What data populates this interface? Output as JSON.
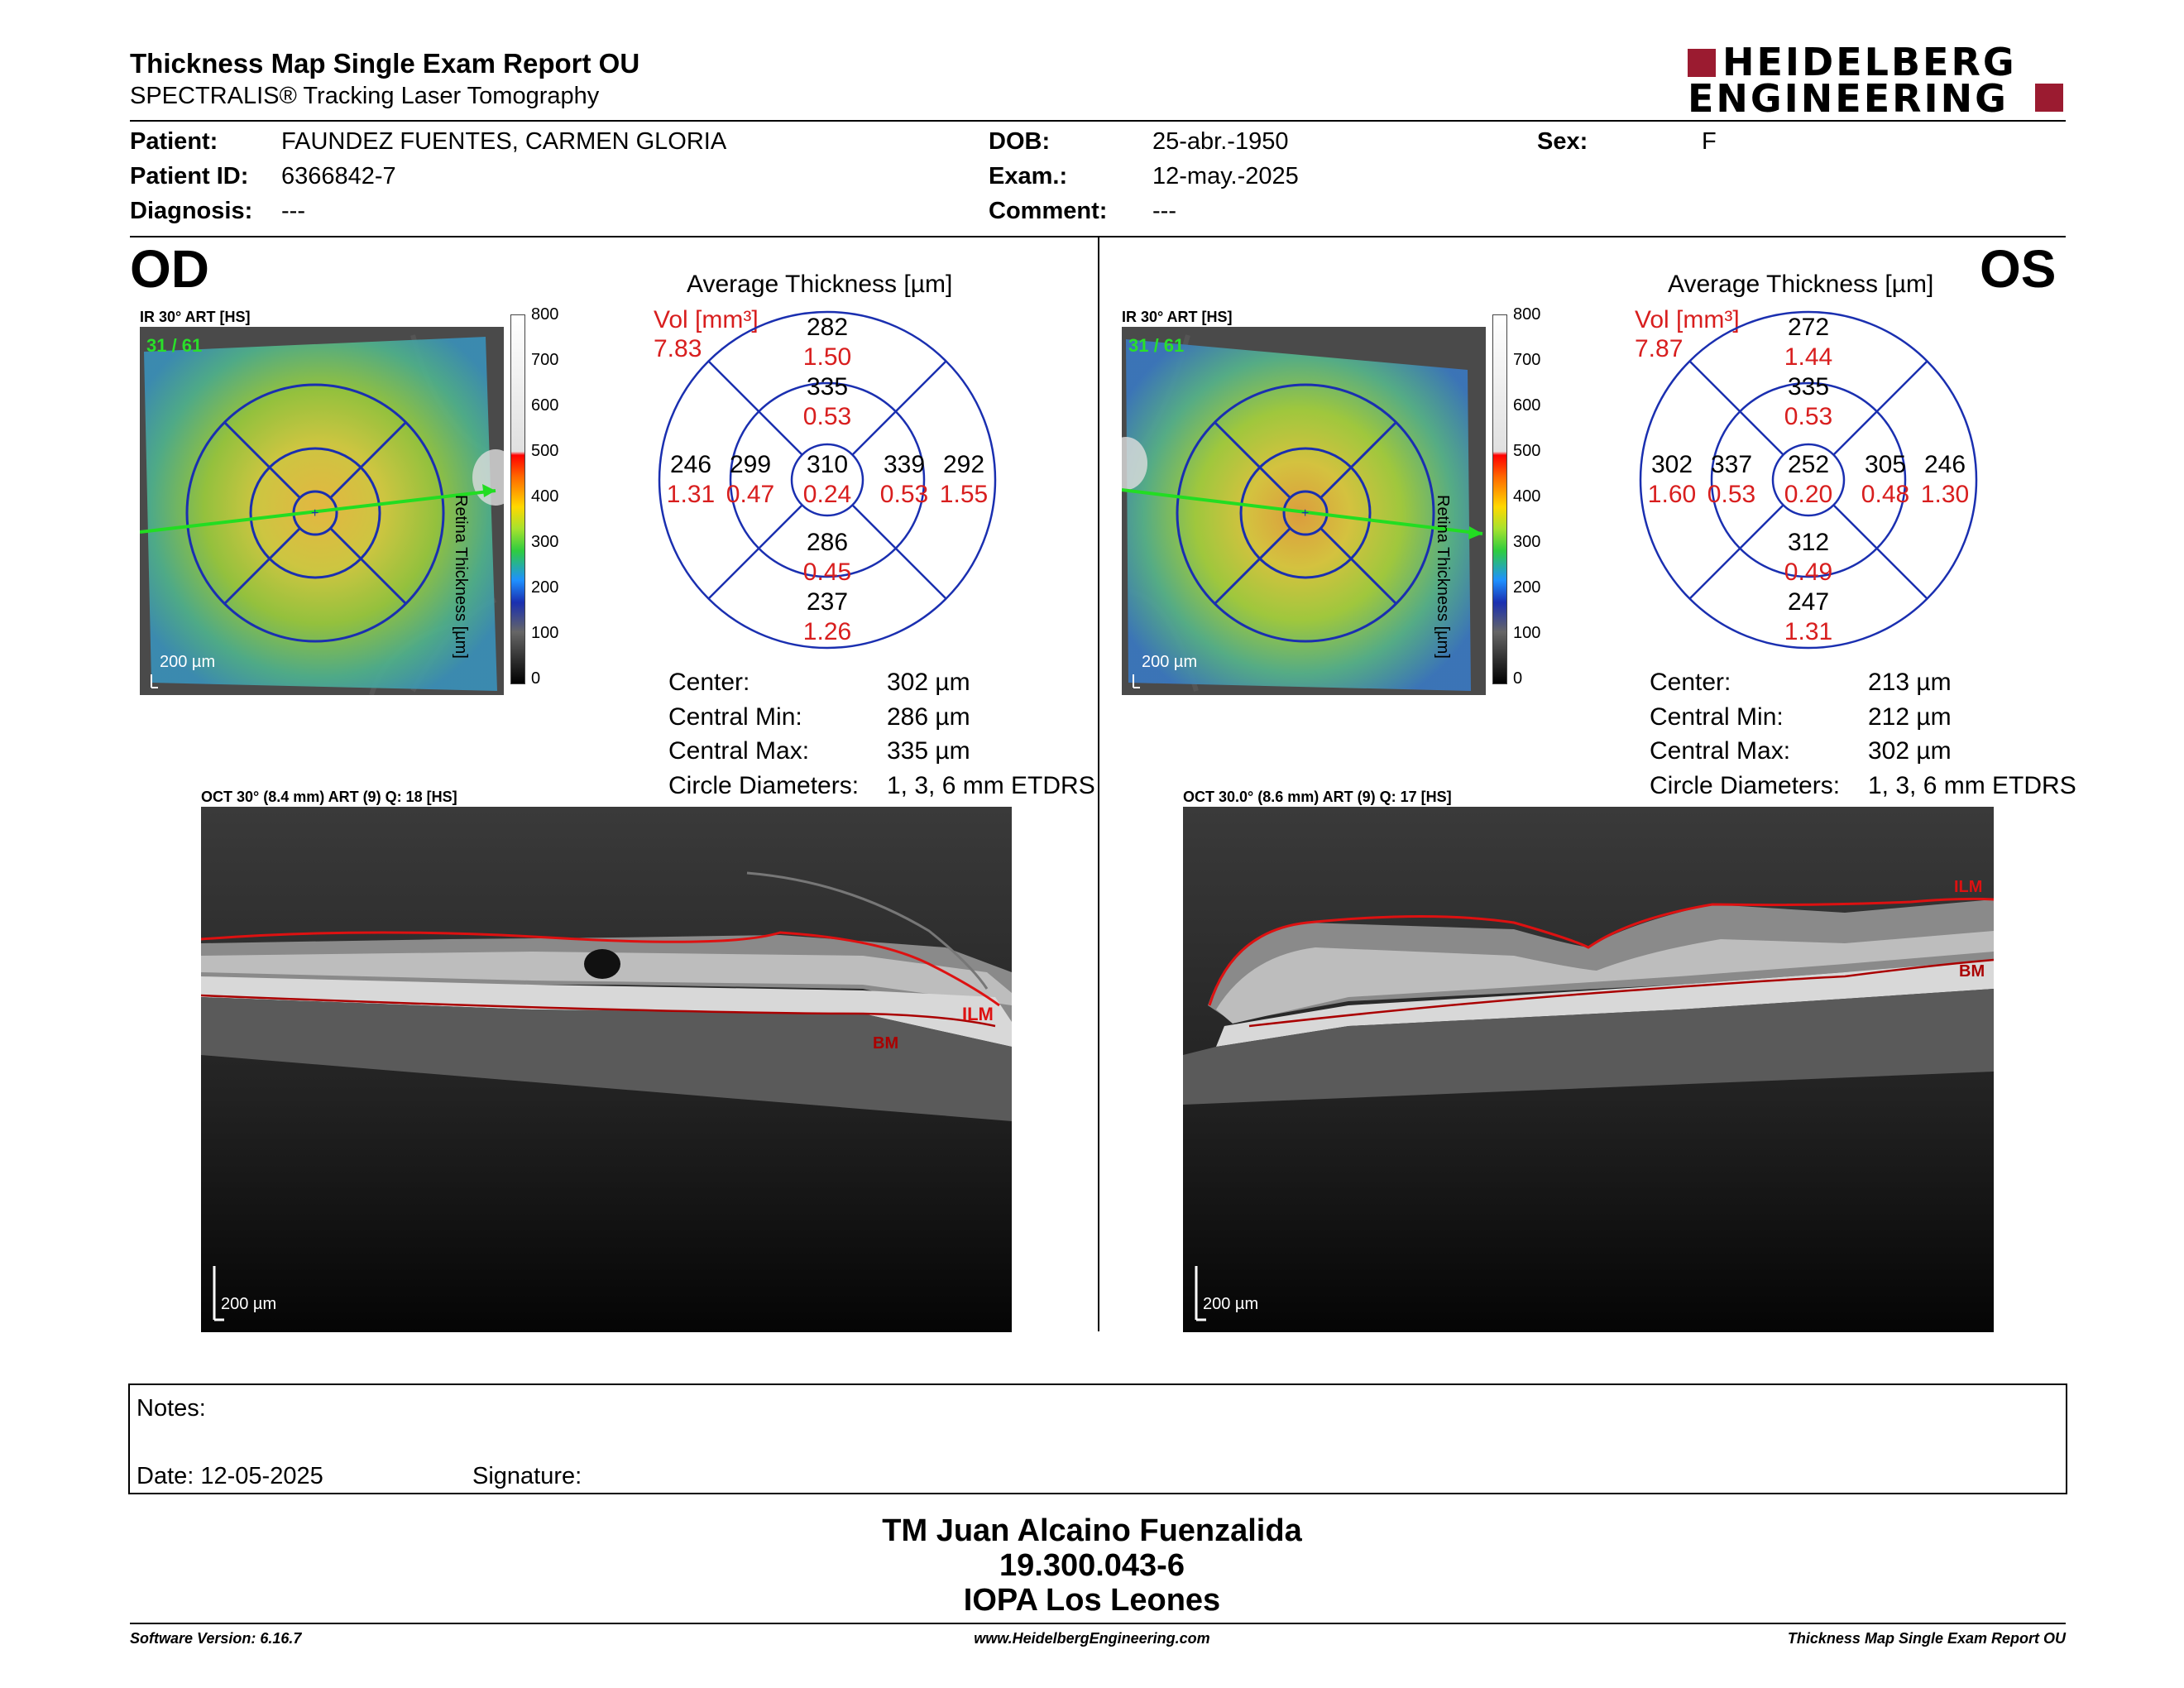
{
  "header": {
    "title": "Thickness Map Single Exam Report OU",
    "subtitle": "SPECTRALIS® Tracking Laser Tomography",
    "logo_line1": "HEIDELBERG",
    "logo_line2": "ENGINEERING",
    "brand_color": "#9b1b30"
  },
  "patient": {
    "patient_label": "Patient:",
    "patient_value": "FAUNDEZ FUENTES, CARMEN  GLORIA",
    "id_label": "Patient ID:",
    "id_value": "6366842-7",
    "diagnosis_label": "Diagnosis:",
    "diagnosis_value": "---",
    "dob_label": "DOB:",
    "dob_value": "25-abr.-1950",
    "exam_label": "Exam.:",
    "exam_value": "12-may.-2025",
    "comment_label": "Comment:",
    "comment_value": "---",
    "sex_label": "Sex:",
    "sex_value": "F"
  },
  "od": {
    "eye_label": "OD",
    "ir_caption": "IR 30° ART [HS]",
    "frame_counter": "31 / 61",
    "scale_label": "200 µm",
    "colorbar_ticks": [
      "800",
      "700",
      "600",
      "500",
      "400",
      "300",
      "200",
      "100",
      "0"
    ],
    "colorbar_title": "Retina  Thickness [µm]",
    "avg_title": "Average Thickness [µm]",
    "vol_label": "Vol [mm³]",
    "vol_value": "7.83",
    "etdrs": {
      "outer_superior": {
        "t": "282",
        "v": "1.50"
      },
      "inner_superior": {
        "t": "335",
        "v": "0.53"
      },
      "outer_left": {
        "t": "246",
        "v": "1.31"
      },
      "inner_left": {
        "t": "299",
        "v": "0.47"
      },
      "center": {
        "t": "310",
        "v": "0.24"
      },
      "inner_right": {
        "t": "339",
        "v": "0.53"
      },
      "outer_right": {
        "t": "292",
        "v": "1.55"
      },
      "inner_inferior": {
        "t": "286",
        "v": "0.45"
      },
      "outer_inferior": {
        "t": "237",
        "v": "1.26"
      }
    },
    "stats": {
      "center_label": "Center:",
      "center_value": "302 µm",
      "min_label": "Central Min:",
      "min_value": "286 µm",
      "max_label": "Central Max:",
      "max_value": "335 µm",
      "diam_label": "Circle Diameters:",
      "diam_value": "1, 3, 6 mm ETDRS"
    },
    "oct_caption": "OCT 30° (8.4 mm) ART (9) Q: 18 [HS]",
    "oct_scale": "200 µm",
    "ilm_label": "ILM",
    "bm_label": "BM"
  },
  "os": {
    "eye_label": "OS",
    "ir_caption": "IR 30° ART [HS]",
    "frame_counter": "31 / 61",
    "scale_label": "200 µm",
    "colorbar_ticks": [
      "800",
      "700",
      "600",
      "500",
      "400",
      "300",
      "200",
      "100",
      "0"
    ],
    "colorbar_title": "Retina  Thickness [µm]",
    "avg_title": "Average Thickness [µm]",
    "vol_label": "Vol [mm³]",
    "vol_value": "7.87",
    "etdrs": {
      "outer_superior": {
        "t": "272",
        "v": "1.44"
      },
      "inner_superior": {
        "t": "335",
        "v": "0.53"
      },
      "outer_left": {
        "t": "302",
        "v": "1.60"
      },
      "inner_left": {
        "t": "337",
        "v": "0.53"
      },
      "center": {
        "t": "252",
        "v": "0.20"
      },
      "inner_right": {
        "t": "305",
        "v": "0.48"
      },
      "outer_right": {
        "t": "246",
        "v": "1.30"
      },
      "inner_inferior": {
        "t": "312",
        "v": "0.49"
      },
      "outer_inferior": {
        "t": "247",
        "v": "1.31"
      }
    },
    "stats": {
      "center_label": "Center:",
      "center_value": "213 µm",
      "min_label": "Central Min:",
      "min_value": "212 µm",
      "max_label": "Central Max:",
      "max_value": "302 µm",
      "diam_label": "Circle Diameters:",
      "diam_value": "1, 3, 6 mm ETDRS"
    },
    "oct_caption": "OCT 30.0° (8.6 mm) ART (9) Q: 17 [HS]",
    "oct_scale": "200 µm",
    "ilm_label": "ILM",
    "bm_label": "BM"
  },
  "notes": {
    "notes_label": "Notes:",
    "date_label": "Date: 12-05-2025",
    "signature_label": "Signature:"
  },
  "signoff": {
    "line1": "TM Juan Alcaino Fuenzalida",
    "line2": "19.300.043-6",
    "line3": "IOPA Los Leones"
  },
  "footer": {
    "software": "Software Version: 6.16.7",
    "url": "www.HeidelbergEngineering.com",
    "report": "Thickness Map Single Exam Report OU"
  }
}
